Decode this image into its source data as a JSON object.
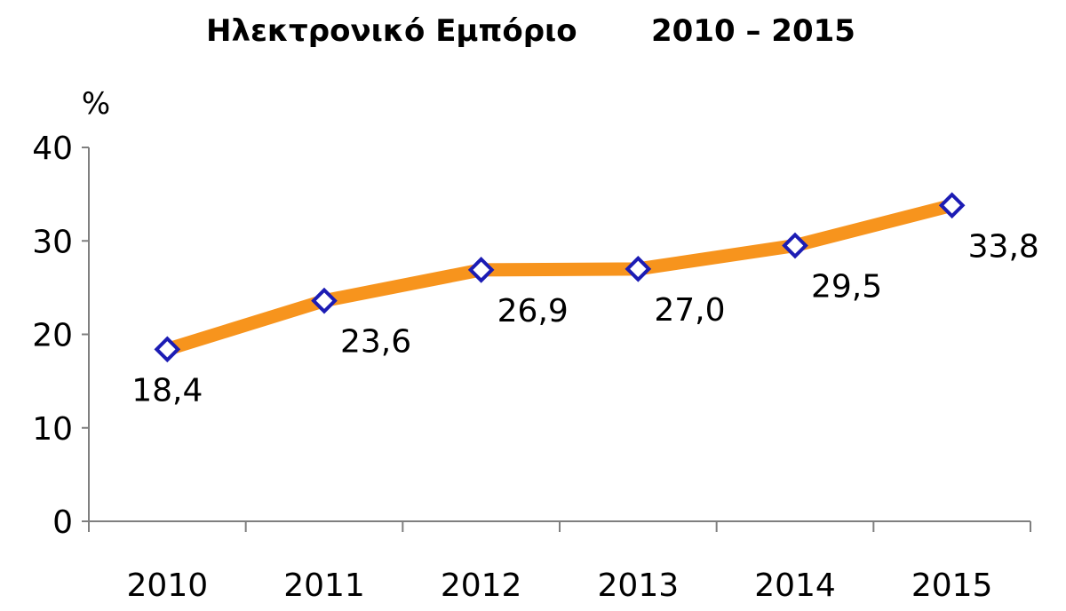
{
  "chart_data": {
    "type": "line",
    "title_part1": "Ηλεκτρονικό Εμπόριο",
    "title_part2": "2010 – 2015",
    "ylabel": "%",
    "xlabel": "",
    "ylim": [
      0,
      40
    ],
    "yticks": [
      "0",
      "10",
      "20",
      "30",
      "40"
    ],
    "categories": [
      "2010",
      "2011",
      "2012",
      "2013",
      "2014",
      "2015"
    ],
    "values": [
      18.4,
      23.6,
      26.9,
      27.0,
      29.5,
      33.8
    ],
    "value_labels": [
      "18,4",
      "23,6",
      "26,9",
      "27,0",
      "29,5",
      "33,8"
    ],
    "grid": false,
    "legend": "none",
    "colors": {
      "line": "#f7941d",
      "marker_stroke": "#1c1cb4",
      "marker_fill": "#ffffff",
      "axis": "#7f7f7f",
      "text": "#000000"
    }
  }
}
